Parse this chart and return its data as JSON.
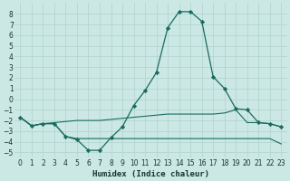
{
  "xlabel": "Humidex (Indice chaleur)",
  "background_color": "#cbe8e4",
  "grid_color": "#b5d5d0",
  "line_color": "#1a6b5f",
  "xlim": [
    -0.5,
    23.5
  ],
  "ylim": [
    -5.5,
    9.0
  ],
  "x_ticks": [
    0,
    1,
    2,
    3,
    4,
    5,
    6,
    7,
    8,
    9,
    10,
    11,
    12,
    13,
    14,
    15,
    16,
    17,
    18,
    19,
    20,
    21,
    22,
    23
  ],
  "y_ticks": [
    -5,
    -4,
    -3,
    -2,
    -1,
    0,
    1,
    2,
    3,
    4,
    5,
    6,
    7,
    8
  ],
  "series1": {
    "x": [
      0,
      1,
      2,
      3,
      4,
      5,
      6,
      7,
      8,
      9,
      10,
      11,
      12,
      13,
      14,
      15,
      16,
      17,
      18,
      19,
      20,
      21,
      22,
      23
    ],
    "y": [
      -1.7,
      -2.5,
      -2.3,
      -2.3,
      -3.5,
      -3.8,
      -4.8,
      -4.8,
      -3.6,
      -2.6,
      -0.6,
      0.8,
      2.5,
      6.7,
      8.2,
      8.2,
      7.3,
      2.1,
      1.0,
      -0.9,
      -1.0,
      -2.2,
      -2.3,
      -2.6
    ]
  },
  "series2": {
    "x": [
      0,
      1,
      2,
      3,
      4,
      5,
      6,
      7,
      8,
      9,
      10,
      11,
      12,
      13,
      14,
      15,
      16,
      17,
      18,
      19,
      20,
      21,
      22,
      23
    ],
    "y": [
      -1.7,
      -2.5,
      -2.3,
      -2.2,
      -2.1,
      -2.0,
      -2.0,
      -2.0,
      -1.9,
      -1.8,
      -1.7,
      -1.6,
      -1.5,
      -1.4,
      -1.4,
      -1.4,
      -1.4,
      -1.4,
      -1.3,
      -1.0,
      -2.2,
      -2.2,
      -2.3,
      -2.6
    ]
  },
  "series3": {
    "x": [
      0,
      1,
      2,
      3,
      4,
      5,
      6,
      7,
      8,
      9,
      10,
      11,
      12,
      13,
      14,
      15,
      16,
      17,
      18,
      19,
      20,
      21,
      22,
      23
    ],
    "y": [
      -1.7,
      -2.5,
      -2.3,
      -2.3,
      -3.5,
      -3.7,
      -3.7,
      -3.7,
      -3.7,
      -3.7,
      -3.7,
      -3.7,
      -3.7,
      -3.7,
      -3.7,
      -3.7,
      -3.7,
      -3.7,
      -3.7,
      -3.7,
      -3.7,
      -3.7,
      -3.7,
      -4.2
    ]
  }
}
